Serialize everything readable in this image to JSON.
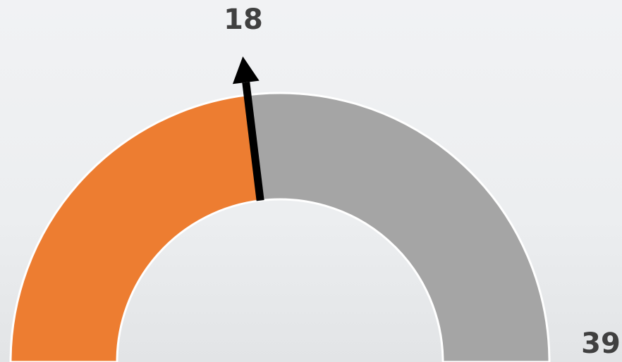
{
  "chart_data": {
    "type": "gauge",
    "value": 18,
    "max": 39,
    "fill_color": "#ed7d31",
    "rest_color": "#a5a5a5",
    "needle_color": "#000000"
  }
}
